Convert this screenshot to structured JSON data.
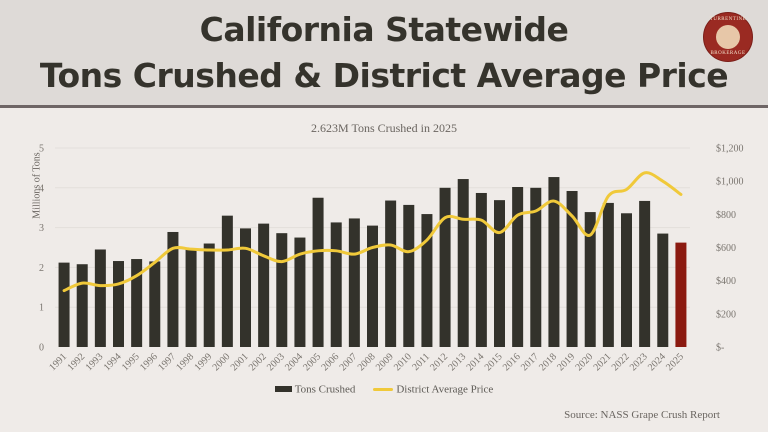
{
  "header": {
    "title_line1": "California Statewide",
    "title_line2": "Tons Crushed & District Average Price",
    "logo": {
      "text_top": "TURRENTINE",
      "text_bottom": "BROKERAGE",
      "icon": "tree-icon"
    }
  },
  "chart_data": {
    "type": "bar",
    "title": "2.623M Tons Crushed in 2025",
    "ylabel": "Millions of Tons",
    "xlabel": "",
    "ylim": [
      0,
      5
    ],
    "y_ticks": [
      "0",
      "1",
      "2",
      "3",
      "4",
      "5"
    ],
    "y2lim": [
      0,
      1200
    ],
    "y2_ticks": [
      "$-",
      "$200",
      "$400",
      "$600",
      "$800",
      "$1,000",
      "$1,200"
    ],
    "grid": true,
    "legend_position": "bottom",
    "categories": [
      "1991",
      "1992",
      "1993",
      "1994",
      "1995",
      "1996",
      "1997",
      "1998",
      "1999",
      "2000",
      "2001",
      "2002",
      "2003",
      "2004",
      "2005",
      "2006",
      "2007",
      "2008",
      "2009",
      "2010",
      "2011",
      "2012",
      "2013",
      "2014",
      "2015",
      "2016",
      "2017",
      "2018",
      "2019",
      "2020",
      "2021",
      "2022",
      "2023",
      "2024",
      "2025"
    ],
    "series": [
      {
        "name": "Tons Crushed",
        "type": "bar",
        "axis": "left",
        "color": "#33322b",
        "highlight_color": "#8b1a10",
        "highlight_index": 34,
        "values": [
          2.12,
          2.08,
          2.45,
          2.16,
          2.21,
          2.15,
          2.89,
          2.48,
          2.6,
          3.3,
          2.98,
          3.1,
          2.86,
          2.75,
          3.75,
          3.13,
          3.23,
          3.05,
          3.68,
          3.57,
          3.34,
          4.0,
          4.22,
          3.87,
          3.69,
          4.02,
          4.0,
          4.27,
          3.92,
          3.39,
          3.62,
          3.36,
          3.67,
          2.85,
          2.623
        ]
      },
      {
        "name": "District Average Price",
        "type": "line",
        "axis": "right",
        "color": "#f0c93a",
        "values": [
          340,
          385,
          370,
          380,
          430,
          510,
          595,
          590,
          585,
          585,
          595,
          550,
          515,
          560,
          580,
          580,
          560,
          600,
          615,
          575,
          645,
          780,
          770,
          765,
          690,
          795,
          820,
          880,
          790,
          675,
          910,
          950,
          1050,
          1000,
          920
        ]
      }
    ]
  },
  "footer": {
    "source": "Source: NASS Grape Crush Report"
  }
}
